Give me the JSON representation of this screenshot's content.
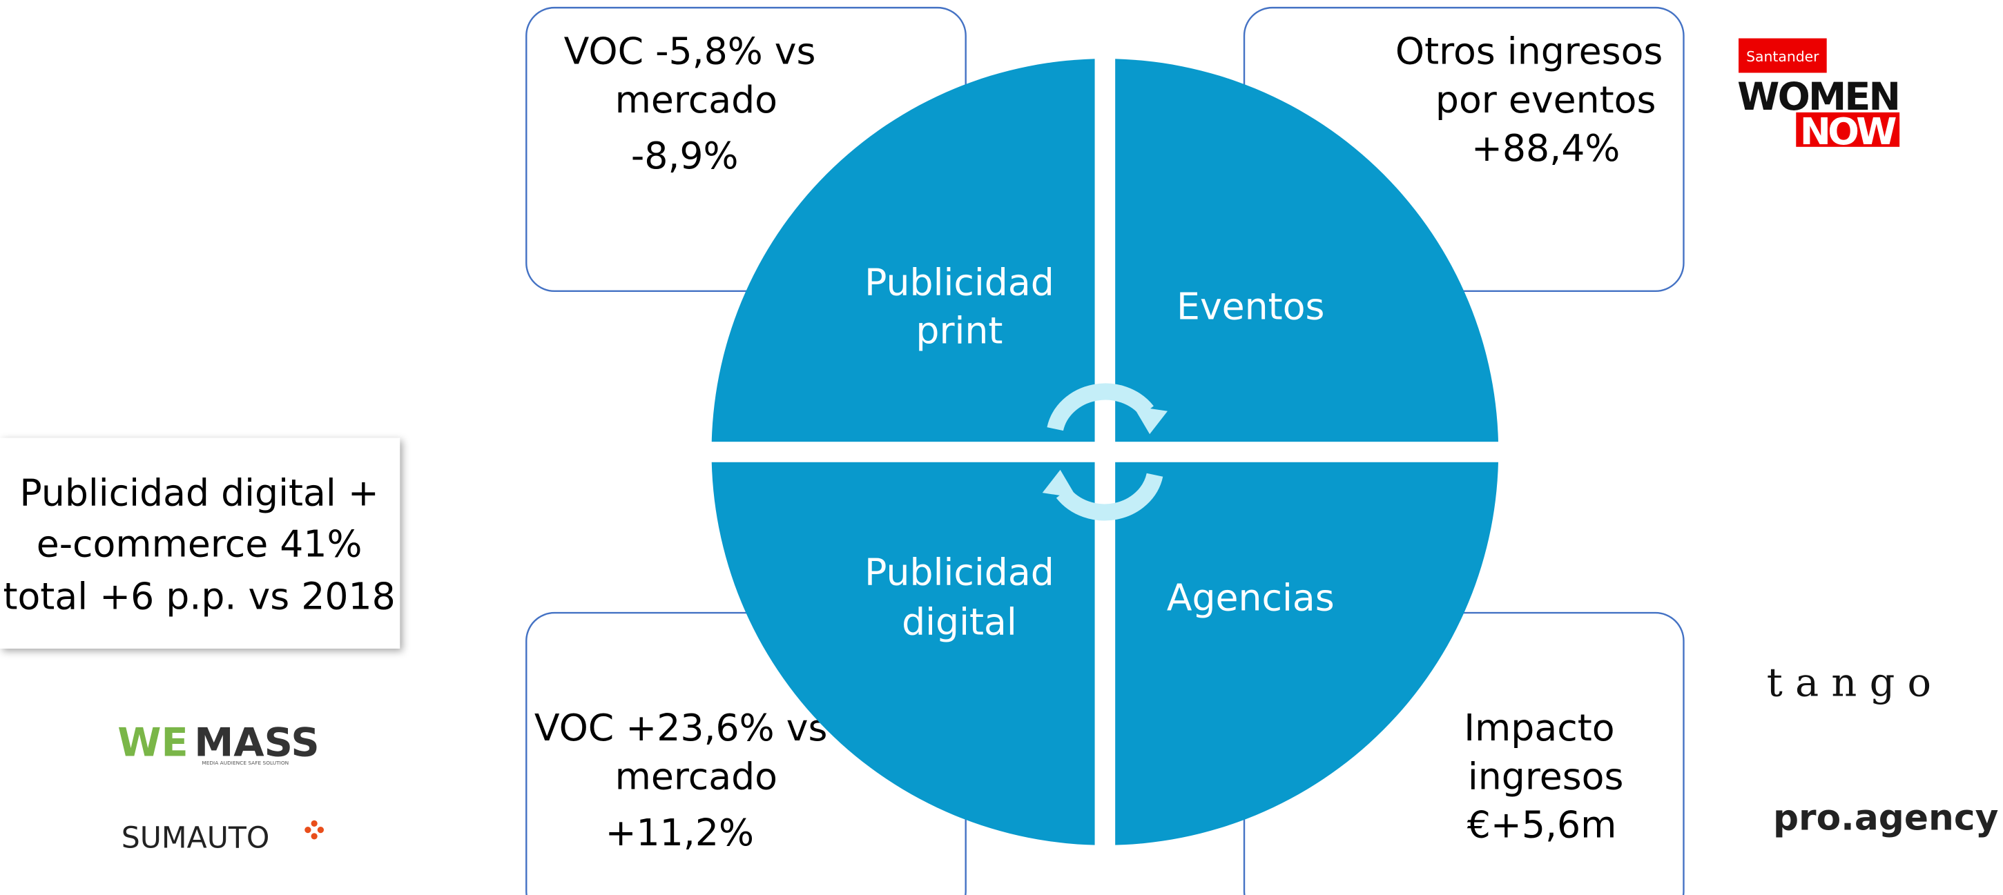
{
  "quadrants": [
    {
      "lines": [
        "Publicidad",
        "print"
      ]
    },
    {
      "lines": [
        "Eventos"
      ]
    },
    {
      "lines": [
        "Publicidad",
        "digital"
      ]
    },
    {
      "lines": [
        "Agencias"
      ]
    }
  ],
  "boxes": [
    {
      "lines": [
        "VOC -5,8% vs",
        "mercado",
        "-8,9%"
      ]
    },
    {
      "lines": [
        "Otros ingresos",
        "por eventos",
        "+88,4%"
      ]
    },
    {
      "lines": [
        "VOC +23,6% vs",
        "mercado",
        "+11,2%"
      ]
    },
    {
      "lines": [
        "Impacto",
        "ingresos",
        "€+5,6m"
      ]
    }
  ],
  "side_box": {
    "lines": [
      "Publicidad digital +",
      "e-commerce 41%",
      "total +6 p.p. vs 2018"
    ]
  },
  "logos": {
    "santander": "Santander",
    "women": "WOMEN",
    "now": "NOW",
    "wemass_a": "WE",
    "wemass_b": "MASS",
    "wemass_tag": "MEDIA AUDIENCE SAFE SOLUTION",
    "sumauto": "SUMAUTO",
    "tango": "t a n g o",
    "proagency": "pro.agency"
  }
}
